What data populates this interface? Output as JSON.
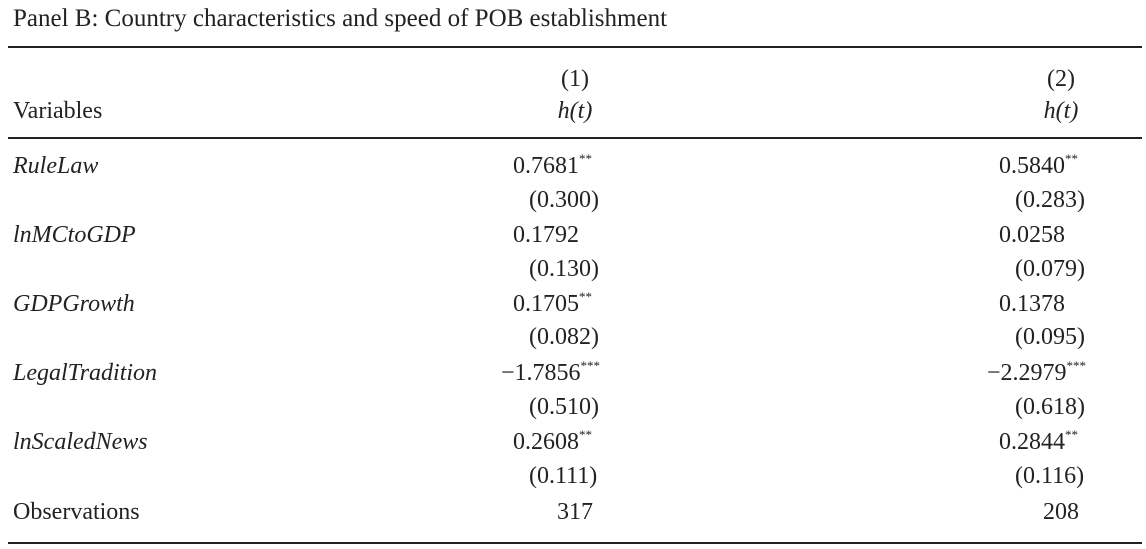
{
  "panel_title": "Panel B: Country characteristics and speed of POB establishment",
  "header": {
    "variables_label": "Variables",
    "columns": [
      {
        "number": "(1)",
        "name": "h(t)"
      },
      {
        "number": "(2)",
        "name": "h(t)"
      }
    ]
  },
  "rows": [
    {
      "name": "RuleLaw",
      "col1": {
        "coef": "0.7681",
        "stars": "**",
        "se": "(0.300)"
      },
      "col2": {
        "coef": "0.5840",
        "stars": "**",
        "se": "(0.283)"
      }
    },
    {
      "name": "lnMCtoGDP",
      "col1": {
        "coef": "0.1792",
        "stars": "",
        "se": "(0.130)"
      },
      "col2": {
        "coef": "0.0258",
        "stars": "",
        "se": "(0.079)"
      }
    },
    {
      "name": "GDPGrowth",
      "col1": {
        "coef": "0.1705",
        "stars": "**",
        "se": "(0.082)"
      },
      "col2": {
        "coef": "0.1378",
        "stars": "",
        "se": "(0.095)"
      }
    },
    {
      "name": "LegalTradition",
      "col1": {
        "coef": "−1.7856",
        "stars": "***",
        "se": "(0.510)"
      },
      "col2": {
        "coef": "−2.2979",
        "stars": "***",
        "se": "(0.618)"
      }
    },
    {
      "name": "lnScaledNews",
      "col1": {
        "coef": "0.2608",
        "stars": "**",
        "se": "(0.111)"
      },
      "col2": {
        "coef": "0.2844",
        "stars": "**",
        "se": "(0.116)"
      }
    }
  ],
  "observations": {
    "label": "Observations",
    "col1": "317",
    "col2": "208"
  }
}
